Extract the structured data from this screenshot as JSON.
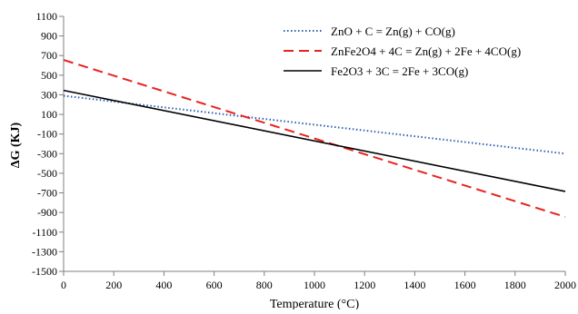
{
  "chart_data": {
    "type": "line",
    "xlabel": "Temperature (°C)",
    "ylabel": "ΔG  (KJ)",
    "xlim": [
      0,
      2000
    ],
    "ylim": [
      -1500,
      1100
    ],
    "xticks": [
      0,
      200,
      400,
      600,
      800,
      1000,
      1200,
      1400,
      1600,
      1800,
      2000
    ],
    "yticks": [
      1100,
      900,
      700,
      500,
      300,
      100,
      -100,
      -300,
      -500,
      -700,
      -900,
      -1100,
      -1300,
      -1500
    ],
    "grid": false,
    "legend_position": "top-right",
    "series": [
      {
        "name": "ZnO + C = Zn(g) + CO(g)",
        "color": "#2f5fb3",
        "style": "dotted",
        "x": [
          0,
          2000
        ],
        "y": [
          290,
          -300
        ]
      },
      {
        "name": "ZnFe2O4 + 4C = Zn(g) + 2Fe + 4CO(g)",
        "color": "#e8231f",
        "style": "dashed",
        "x": [
          0,
          2000
        ],
        "y": [
          655,
          -945
        ]
      },
      {
        "name": "Fe2O3 + 3C = 2Fe + 3CO(g)",
        "color": "#000000",
        "style": "solid",
        "x": [
          0,
          2000
        ],
        "y": [
          345,
          -685
        ]
      }
    ]
  }
}
